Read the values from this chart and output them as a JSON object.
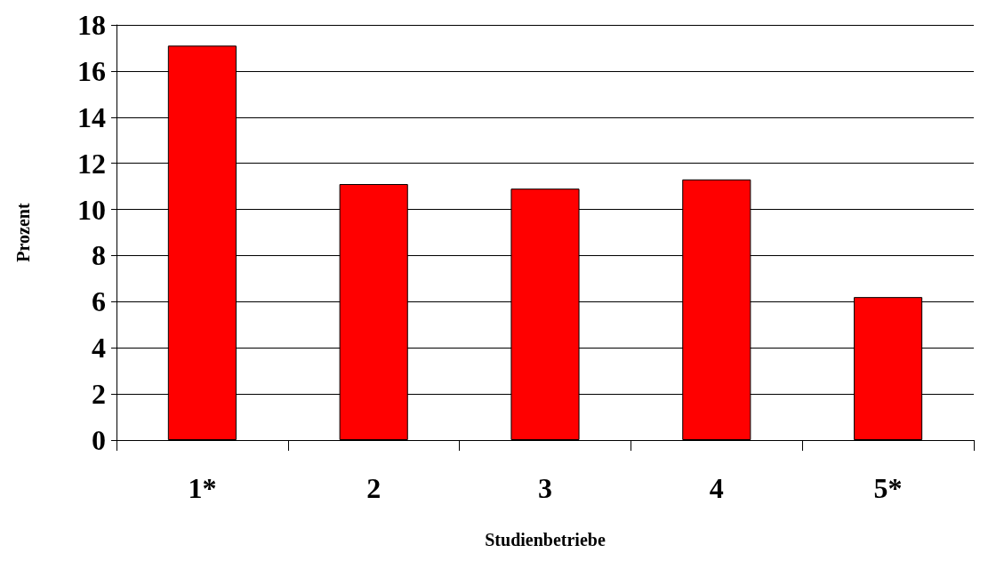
{
  "chart_data": {
    "type": "bar",
    "xlabel": "Studienbetriebe",
    "ylabel": "Prozent",
    "categories": [
      "1*",
      "2",
      "3",
      "4",
      "5*"
    ],
    "values": [
      17.1,
      11.1,
      10.9,
      11.3,
      6.2
    ],
    "color": "#ff0000",
    "ylim": [
      0,
      18
    ],
    "yticks": [
      0,
      2,
      4,
      6,
      8,
      10,
      12,
      14,
      16,
      18
    ],
    "grid": "y"
  }
}
